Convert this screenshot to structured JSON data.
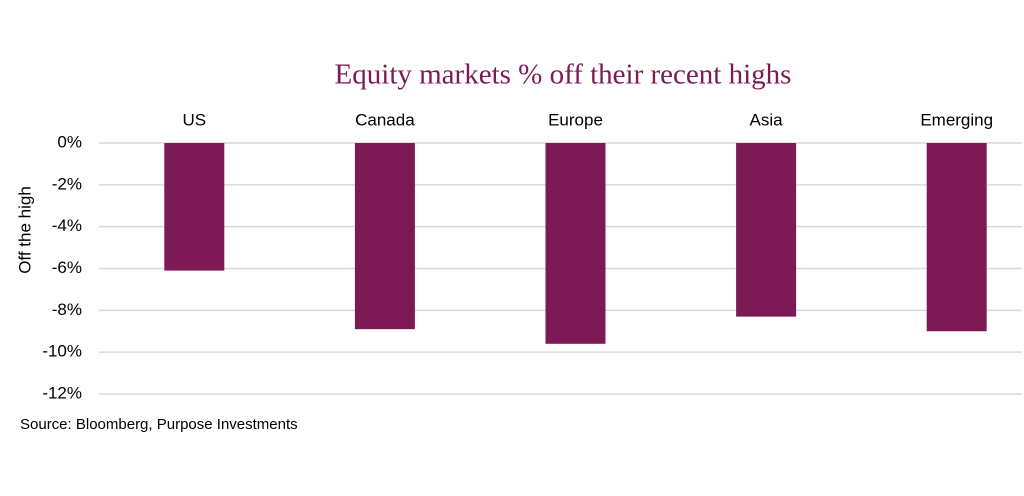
{
  "chart_data": {
    "type": "bar",
    "title": "Equity markets % off their recent highs",
    "y_label": "Off the high",
    "source": "Source: Bloomberg, Purpose Investments",
    "categories": [
      "US",
      "Canada",
      "Europe",
      "Asia",
      "Emerging"
    ],
    "values": [
      -6.1,
      -8.9,
      -9.6,
      -8.3,
      -9.0
    ],
    "color": "#7d1a55",
    "ylim": [
      -12,
      0
    ],
    "yticks": [
      {
        "value": 0,
        "label": "0%"
      },
      {
        "value": -2,
        "label": "-2%"
      },
      {
        "value": -4,
        "label": "-4%"
      },
      {
        "value": -6,
        "label": "-6%"
      },
      {
        "value": -8,
        "label": "-8%"
      },
      {
        "value": -10,
        "label": "-10%"
      },
      {
        "value": -12,
        "label": "-12%"
      }
    ],
    "grid": true
  }
}
